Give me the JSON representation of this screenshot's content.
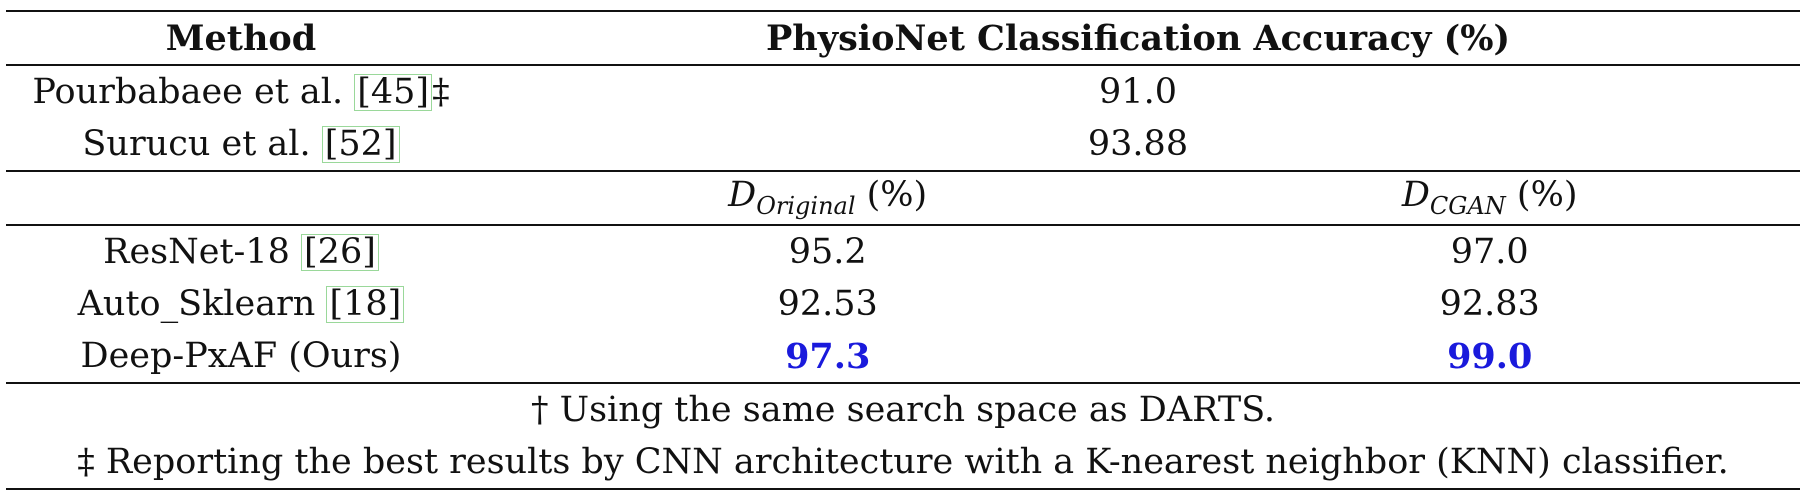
{
  "table": {
    "header": {
      "method": "Method",
      "accuracy": "PhysioNet Classification Accuracy (%)"
    },
    "prior_rows": [
      {
        "method": "Pourbabaee et al. ",
        "ref": "[45]",
        "mark": "‡",
        "value": "91.0"
      },
      {
        "method": "Surucu et al. ",
        "ref": "[52]",
        "mark": "",
        "value": "93.88"
      }
    ],
    "subheader": {
      "col1_symbol": "D",
      "col1_sub": "Original",
      "col1_unit": " (%)",
      "col2_symbol": "D",
      "col2_sub": "CGAN",
      "col2_unit": " (%)"
    },
    "rows": [
      {
        "method": "ResNet-18 ",
        "ref": "[26]",
        "original": "95.2",
        "cgan": "97.0"
      },
      {
        "method": "Auto_Sklearn ",
        "ref": "[18]",
        "original": "92.53",
        "cgan": "92.83"
      },
      {
        "method": "Deep-PxAF (Ours)",
        "ref": "",
        "original": "97.3",
        "cgan": "99.0"
      }
    ],
    "footnotes": [
      "† Using the same search space as DARTS.",
      "‡ Reporting the best results by CNN architecture with a K-nearest neighbor (KNN) classifier."
    ],
    "colors": {
      "best": "#1a1adc",
      "ref_box": "#9ad89a"
    }
  }
}
